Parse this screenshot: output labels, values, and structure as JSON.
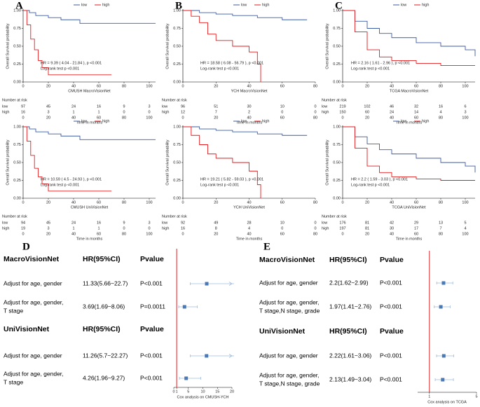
{
  "chart_data": [
    {
      "type": "km",
      "panel": "A",
      "ylabel": "Overall Survival probability",
      "xlabel": "CMUSH MacroVisionNet",
      "annotation": "HR = 9.39 ( 4.04 - 21.84 ), p <0.001",
      "annotation2": "Log-rank test p <0.001",
      "risk_title": "Number at risk",
      "risk_xlabel": "Time in months",
      "xlim": [
        0,
        105
      ],
      "xticks": [
        0,
        20,
        40,
        60,
        80,
        100
      ],
      "ylim": [
        0,
        1
      ],
      "yticks": [
        {
          "value": 0,
          "label": "0.00"
        },
        {
          "value": 0.25,
          "label": "0.25"
        },
        {
          "value": 0.5,
          "label": "0.50"
        },
        {
          "value": 0.75,
          "label": "0.75"
        },
        {
          "value": 1,
          "label": "1.00"
        }
      ],
      "risk_times": [
        0,
        20,
        40,
        60,
        80,
        100
      ],
      "series": [
        {
          "name": "low",
          "color": "#3b5ba5",
          "x": [
            0,
            5,
            10,
            20,
            30,
            45,
            105
          ],
          "values": [
            1,
            0.97,
            0.93,
            0.9,
            0.87,
            0.82,
            0.82
          ],
          "at_risk": [
            97,
            45,
            24,
            16,
            9,
            3
          ]
        },
        {
          "name": "high",
          "color": "#e41a1c",
          "x": [
            0,
            3,
            6,
            9,
            12,
            15,
            20,
            70
          ],
          "values": [
            1,
            0.8,
            0.6,
            0.45,
            0.3,
            0.2,
            0.1,
            0.1
          ],
          "at_risk": [
            16,
            3,
            1,
            1,
            0,
            0
          ]
        }
      ]
    },
    {
      "type": "km",
      "panel": "B",
      "ylabel": "Overall Survival probability",
      "xlabel": "YCH MacroVisionNet",
      "annotation": "HR = 18.58 ( 6.08 - 56.79 ), p <0.001",
      "annotation2": "Log-rank test p <0.001",
      "risk_title": "Number at risk",
      "risk_xlabel": "Time in months",
      "xlim": [
        0,
        80
      ],
      "xticks": [
        0,
        20,
        40,
        60,
        80
      ],
      "ylim": [
        0,
        1
      ],
      "yticks": [
        {
          "value": 0,
          "label": "0.00"
        },
        {
          "value": 0.25,
          "label": "0.25"
        },
        {
          "value": 0.5,
          "label": "0.50"
        },
        {
          "value": 0.75,
          "label": "0.75"
        },
        {
          "value": 1,
          "label": "1.00"
        }
      ],
      "risk_times": [
        0,
        20,
        40,
        60,
        80
      ],
      "series": [
        {
          "name": "low",
          "color": "#3b5ba5",
          "x": [
            0,
            10,
            20,
            30,
            45,
            60,
            75
          ],
          "values": [
            1,
            0.97,
            0.95,
            0.93,
            0.9,
            0.87,
            0.87
          ],
          "at_risk": [
            96,
            51,
            30,
            10,
            0
          ]
        },
        {
          "name": "high",
          "color": "#e41a1c",
          "x": [
            0,
            5,
            10,
            15,
            20,
            30,
            40,
            45,
            47
          ],
          "values": [
            1,
            0.92,
            0.83,
            0.67,
            0.58,
            0.5,
            0.42,
            0.25,
            0
          ],
          "at_risk": [
            12,
            7,
            2,
            0,
            0
          ]
        }
      ]
    },
    {
      "type": "km",
      "panel": "C",
      "ylabel": "Overall Survival probability",
      "xlabel": "TCGA MacroVisionNet",
      "annotation": "HR = 2.16 ( 1.61 - 2.96 ), p <0.001",
      "annotation2": "Log-rank test p <0.001",
      "risk_title": "Number at risk",
      "risk_xlabel": "Time in months",
      "xlim": [
        0,
        108
      ],
      "xticks": [
        0,
        20,
        40,
        60,
        80,
        100
      ],
      "ylim": [
        0,
        1
      ],
      "yticks": [
        {
          "value": 0,
          "label": "0.00"
        },
        {
          "value": 0.25,
          "label": "0.25"
        },
        {
          "value": 0.5,
          "label": "0.50"
        },
        {
          "value": 0.75,
          "label": "0.75"
        },
        {
          "value": 1,
          "label": "1.00"
        }
      ],
      "risk_times": [
        0,
        20,
        40,
        60,
        80,
        100
      ],
      "series": [
        {
          "name": "low",
          "color": "#3b5ba5",
          "x": [
            0,
            10,
            20,
            30,
            40,
            60,
            80,
            100,
            108
          ],
          "values": [
            1,
            0.85,
            0.75,
            0.68,
            0.62,
            0.55,
            0.5,
            0.45,
            0.36
          ],
          "at_risk": [
            219,
            102,
            46,
            32,
            16,
            6
          ]
        },
        {
          "name": "high",
          "color": "#e41a1c",
          "x": [
            0,
            10,
            20,
            30,
            40,
            60,
            80,
            108
          ],
          "values": [
            1,
            0.7,
            0.45,
            0.35,
            0.3,
            0.26,
            0.23,
            0.23
          ],
          "at_risk": [
            150,
            60,
            24,
            14,
            4,
            3
          ]
        }
      ]
    },
    {
      "type": "km",
      "panel": null,
      "ylabel": "Overall Survival probability",
      "xlabel": "CMUSH UniVisionNet",
      "annotation": "HR = 10.59 ( 4.5 - 24.93 ), p <0.001",
      "annotation2": "Log-rank test p <0.001",
      "risk_title": "Number at risk",
      "risk_xlabel": "Time in months",
      "xlim": [
        0,
        105
      ],
      "xticks": [
        0,
        20,
        40,
        60,
        80,
        100
      ],
      "ylim": [
        0,
        1
      ],
      "yticks": [
        {
          "value": 0,
          "label": "0.00"
        },
        {
          "value": 0.25,
          "label": "0.25"
        },
        {
          "value": 0.5,
          "label": "0.50"
        },
        {
          "value": 0.75,
          "label": "0.75"
        },
        {
          "value": 1,
          "label": "1.00"
        }
      ],
      "risk_times": [
        0,
        20,
        40,
        60,
        80,
        100
      ],
      "series": [
        {
          "name": "low",
          "color": "#3b5ba5",
          "x": [
            0,
            5,
            10,
            20,
            30,
            45,
            105
          ],
          "values": [
            1,
            0.97,
            0.93,
            0.9,
            0.87,
            0.82,
            0.82
          ],
          "at_risk": [
            94,
            45,
            24,
            16,
            9,
            3
          ]
        },
        {
          "name": "high",
          "color": "#e41a1c",
          "x": [
            0,
            3,
            6,
            9,
            12,
            15,
            20,
            70
          ],
          "values": [
            1,
            0.8,
            0.6,
            0.42,
            0.3,
            0.2,
            0.1,
            0.1
          ],
          "at_risk": [
            19,
            3,
            1,
            1,
            0,
            0
          ]
        }
      ]
    },
    {
      "type": "km",
      "panel": null,
      "ylabel": "Overall Survival probability",
      "xlabel": "YCH UniVisionNet",
      "annotation": "HR = 19.21 ( 5.82 - 59.03 ), p <0.001",
      "annotation2": "Log-rank test p <0.001",
      "risk_title": "Number at risk",
      "risk_xlabel": "Time in months",
      "xlim": [
        0,
        80
      ],
      "xticks": [
        0,
        20,
        40,
        60,
        80
      ],
      "ylim": [
        0,
        1
      ],
      "yticks": [
        {
          "value": 0,
          "label": "0.00"
        },
        {
          "value": 0.25,
          "label": "0.25"
        },
        {
          "value": 0.5,
          "label": "0.50"
        },
        {
          "value": 0.75,
          "label": "0.75"
        },
        {
          "value": 1,
          "label": "1.00"
        }
      ],
      "risk_times": [
        0,
        20,
        40,
        60,
        80
      ],
      "series": [
        {
          "name": "low",
          "color": "#3b5ba5",
          "x": [
            0,
            10,
            20,
            30,
            45,
            60,
            75
          ],
          "values": [
            1,
            0.97,
            0.95,
            0.93,
            0.9,
            0.88,
            0.88
          ],
          "at_risk": [
            92,
            49,
            28,
            10,
            0
          ]
        },
        {
          "name": "high",
          "color": "#e41a1c",
          "x": [
            0,
            5,
            10,
            15,
            20,
            30,
            40,
            45,
            47
          ],
          "values": [
            1,
            0.88,
            0.75,
            0.62,
            0.56,
            0.5,
            0.38,
            0.19,
            0
          ],
          "at_risk": [
            16,
            8,
            4,
            0,
            0
          ]
        }
      ]
    },
    {
      "type": "km",
      "panel": null,
      "ylabel": "Overall Survival probability",
      "xlabel": "TCGA UniVisionNet",
      "annotation": "HR = 2.2 ( 1.59 - 3.03 ), p <0.001",
      "annotation2": "Log-rank test p <0.001",
      "risk_title": "Number at risk",
      "risk_xlabel": "Time in months",
      "xlim": [
        0,
        108
      ],
      "xticks": [
        0,
        20,
        40,
        60,
        80,
        100
      ],
      "ylim": [
        0,
        1
      ],
      "yticks": [
        {
          "value": 0,
          "label": "0.00"
        },
        {
          "value": 0.25,
          "label": "0.25"
        },
        {
          "value": 0.5,
          "label": "0.50"
        },
        {
          "value": 0.75,
          "label": "0.75"
        },
        {
          "value": 1,
          "label": "1.00"
        }
      ],
      "risk_times": [
        0,
        20,
        40,
        60,
        80,
        100
      ],
      "series": [
        {
          "name": "low",
          "color": "#3b5ba5",
          "x": [
            0,
            10,
            20,
            30,
            40,
            60,
            80,
            100,
            108
          ],
          "values": [
            1,
            0.86,
            0.76,
            0.68,
            0.62,
            0.56,
            0.5,
            0.45,
            0.36
          ],
          "at_risk": [
            176,
            81,
            42,
            29,
            13,
            5
          ]
        },
        {
          "name": "high",
          "color": "#e41a1c",
          "x": [
            0,
            10,
            20,
            30,
            40,
            60,
            80,
            108
          ],
          "values": [
            1,
            0.7,
            0.45,
            0.36,
            0.3,
            0.27,
            0.25,
            0.25
          ],
          "at_risk": [
            197,
            81,
            30,
            17,
            7,
            4
          ]
        }
      ]
    },
    {
      "type": "forest",
      "panel": "D",
      "caption": "Cox analysis on CMUSH-YCH",
      "xlim": [
        0,
        20
      ],
      "xticks": [
        0,
        1,
        5,
        10,
        15,
        20
      ],
      "ref": 1,
      "ref_color": "#d62728",
      "color": "#4a7ab5",
      "groups": [
        {
          "header": [
            "MacroVisionNet",
            "HR(95%CI)",
            "Pvalue"
          ],
          "rows": [
            {
              "label": [
                "Adjust for age, gender"
              ],
              "hr_text": "11.33(5.66~22.7)",
              "p_text": "P<0.001",
              "hr": 11.33,
              "lower": 5.66,
              "upper": 22.7
            },
            {
              "label": [
                "Adjust for age, gender,",
                "T stage"
              ],
              "hr_text": "3.69(1.69~8.06)",
              "p_text": "P=0.0011",
              "hr": 3.69,
              "lower": 1.69,
              "upper": 8.06
            }
          ]
        },
        {
          "header": [
            "UniVisionNet",
            "HR(95%CI)",
            "Pvalue"
          ],
          "rows": [
            {
              "label": [
                "Adjust for age, gender"
              ],
              "hr_text": "11.26(5.7~22.27)",
              "p_text": "P<0.001",
              "hr": 11.26,
              "lower": 5.7,
              "upper": 22.27
            },
            {
              "label": [
                "Adjust for age, gender,",
                "T stage"
              ],
              "hr_text": "4.26(1.96~9.27)",
              "p_text": "P<0.001",
              "hr": 4.26,
              "lower": 1.96,
              "upper": 9.27
            }
          ]
        }
      ]
    },
    {
      "type": "forest",
      "panel": "E",
      "caption": "Cox analysis on TCGA",
      "xlim": [
        0,
        5
      ],
      "xticks": [
        1,
        5
      ],
      "ref": 1,
      "ref_color": "#d62728",
      "color": "#4a7ab5",
      "groups": [
        {
          "header": [
            "MacroVisionNet",
            "HR(95%CI)",
            "Pvalue"
          ],
          "rows": [
            {
              "label": [
                "Adjust for age, gender"
              ],
              "hr_text": "2.2(1.62~2.99)",
              "p_text": "P<0.001",
              "hr": 2.2,
              "lower": 1.62,
              "upper": 2.99
            },
            {
              "label": [
                "Adjust for age, gender,",
                "T stage,N stage, grade"
              ],
              "hr_text": "1.97(1.41~2.76)",
              "p_text": "P<0.001",
              "hr": 1.97,
              "lower": 1.41,
              "upper": 2.76
            }
          ]
        },
        {
          "header": [
            "UniVisionNet",
            "HR(95%CI)",
            "Pvalue"
          ],
          "rows": [
            {
              "label": [
                "Adjust for age, gender"
              ],
              "hr_text": "2.22(1.61~3.06)",
              "p_text": "P<0.001",
              "hr": 2.22,
              "lower": 1.61,
              "upper": 3.06
            },
            {
              "label": [
                "Adjust for age, gender,",
                "T stage,N stage, grade"
              ],
              "hr_text": "2.13(1.49~3.04)",
              "p_text": "P<0.001",
              "hr": 2.13,
              "lower": 1.49,
              "upper": 3.04
            }
          ]
        }
      ]
    }
  ]
}
